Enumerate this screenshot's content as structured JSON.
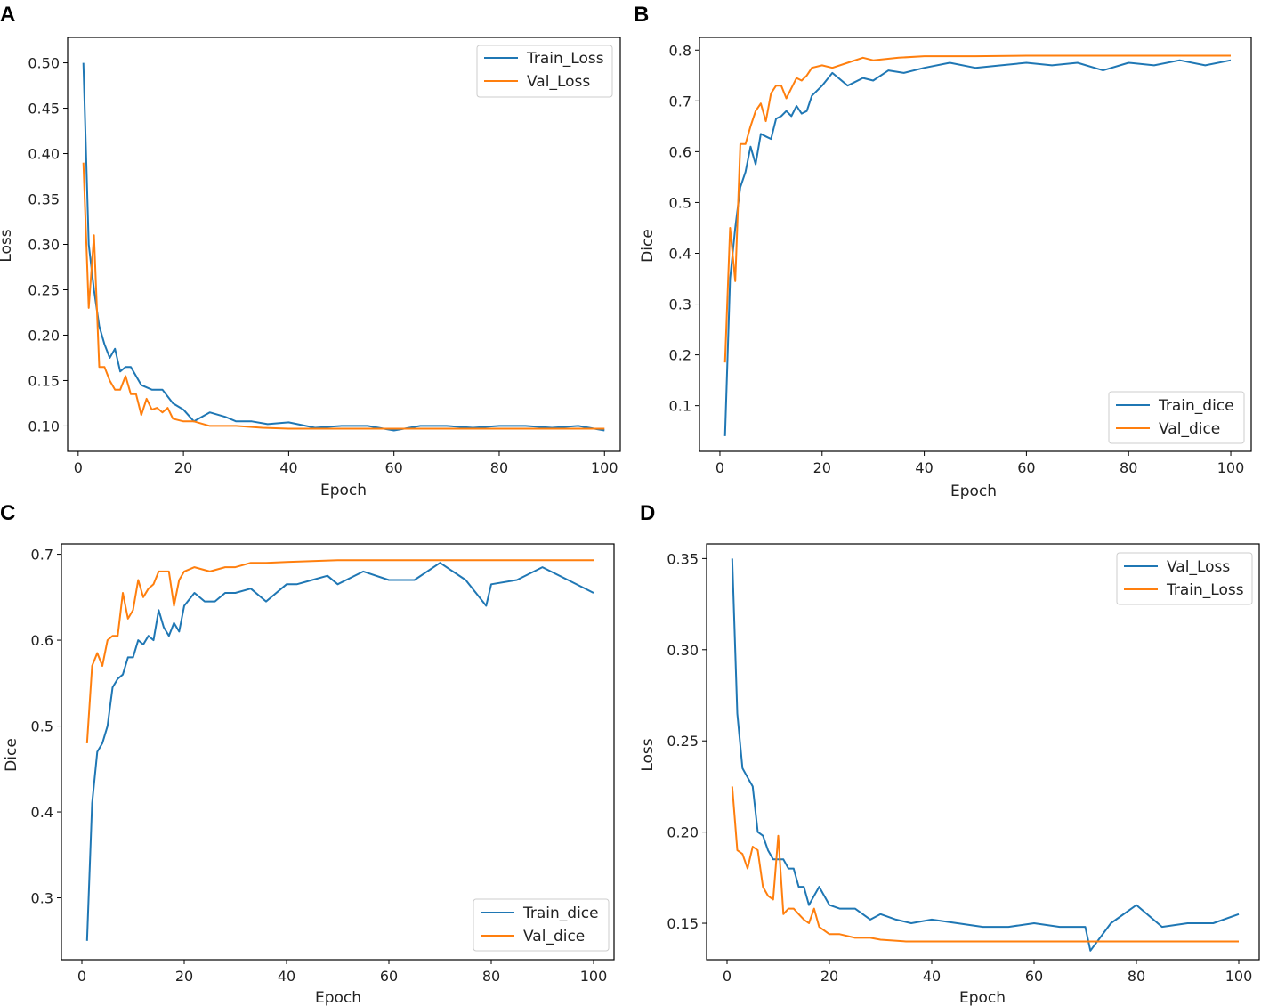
{
  "figure": {
    "colors": {
      "blue": "#1f77b4",
      "orange": "#ff7f0e"
    }
  },
  "chart_data": [
    {
      "panel": "A",
      "type": "line",
      "title": "",
      "xlabel": "Epoch",
      "ylabel": "Loss",
      "xlim": [
        -2,
        103
      ],
      "ylim": [
        0.072,
        0.528
      ],
      "xticks": [
        0,
        20,
        40,
        60,
        80,
        100
      ],
      "yticks": [
        0.1,
        0.15,
        0.2,
        0.25,
        0.3,
        0.35,
        0.4,
        0.45,
        0.5
      ],
      "ytick_labels": [
        "0.10",
        "0.15",
        "0.20",
        "0.25",
        "0.30",
        "0.35",
        "0.40",
        "0.45",
        "0.50"
      ],
      "legend_position": "top-right",
      "series": [
        {
          "name": "Train_Loss",
          "color": "#1f77b4",
          "x": [
            1,
            2,
            3,
            4,
            5,
            6,
            7,
            8,
            9,
            10,
            12,
            14,
            16,
            18,
            20,
            22,
            25,
            28,
            30,
            33,
            36,
            40,
            45,
            50,
            55,
            60,
            65,
            70,
            75,
            80,
            85,
            90,
            95,
            100
          ],
          "y": [
            0.5,
            0.3,
            0.25,
            0.21,
            0.19,
            0.175,
            0.185,
            0.16,
            0.165,
            0.165,
            0.145,
            0.14,
            0.14,
            0.125,
            0.118,
            0.105,
            0.115,
            0.11,
            0.105,
            0.105,
            0.102,
            0.104,
            0.098,
            0.1,
            0.1,
            0.095,
            0.1,
            0.1,
            0.098,
            0.1,
            0.1,
            0.098,
            0.1,
            0.095
          ]
        },
        {
          "name": "Val_Loss",
          "color": "#ff7f0e",
          "x": [
            1,
            2,
            3,
            4,
            5,
            6,
            7,
            8,
            9,
            10,
            11,
            12,
            13,
            14,
            15,
            16,
            17,
            18,
            20,
            22,
            25,
            28,
            30,
            35,
            40,
            50,
            60,
            70,
            80,
            90,
            100
          ],
          "y": [
            0.39,
            0.23,
            0.31,
            0.165,
            0.165,
            0.15,
            0.14,
            0.14,
            0.155,
            0.135,
            0.135,
            0.112,
            0.13,
            0.118,
            0.12,
            0.115,
            0.12,
            0.108,
            0.105,
            0.105,
            0.1,
            0.1,
            0.1,
            0.098,
            0.097,
            0.097,
            0.097,
            0.097,
            0.097,
            0.097,
            0.097
          ]
        }
      ]
    },
    {
      "panel": "B",
      "type": "line",
      "title": "",
      "xlabel": "Epoch",
      "ylabel": "Dice",
      "xlim": [
        -4,
        104
      ],
      "ylim": [
        0.01,
        0.825
      ],
      "xticks": [
        0,
        20,
        40,
        60,
        80,
        100
      ],
      "yticks": [
        0.1,
        0.2,
        0.3,
        0.4,
        0.5,
        0.6,
        0.7,
        0.8
      ],
      "ytick_labels": [
        "0.1",
        "0.2",
        "0.3",
        "0.4",
        "0.5",
        "0.6",
        "0.7",
        "0.8"
      ],
      "legend_position": "bottom-right",
      "series": [
        {
          "name": "Train_dice",
          "color": "#1f77b4",
          "x": [
            1,
            2,
            3,
            4,
            5,
            6,
            7,
            8,
            9,
            10,
            11,
            12,
            13,
            14,
            15,
            16,
            17,
            18,
            20,
            22,
            25,
            28,
            30,
            33,
            36,
            40,
            45,
            50,
            55,
            60,
            65,
            70,
            75,
            80,
            85,
            90,
            95,
            100
          ],
          "y": [
            0.04,
            0.35,
            0.45,
            0.53,
            0.56,
            0.61,
            0.575,
            0.635,
            0.63,
            0.625,
            0.665,
            0.67,
            0.68,
            0.67,
            0.69,
            0.675,
            0.68,
            0.71,
            0.73,
            0.755,
            0.73,
            0.745,
            0.74,
            0.76,
            0.755,
            0.765,
            0.775,
            0.765,
            0.77,
            0.775,
            0.77,
            0.775,
            0.76,
            0.775,
            0.77,
            0.78,
            0.77,
            0.78
          ]
        },
        {
          "name": "Val_dice",
          "color": "#ff7f0e",
          "x": [
            1,
            2,
            3,
            4,
            5,
            6,
            7,
            8,
            9,
            10,
            11,
            12,
            13,
            14,
            15,
            16,
            17,
            18,
            20,
            22,
            25,
            28,
            30,
            35,
            40,
            50,
            60,
            70,
            80,
            90,
            100
          ],
          "y": [
            0.185,
            0.45,
            0.345,
            0.615,
            0.615,
            0.65,
            0.68,
            0.695,
            0.66,
            0.715,
            0.73,
            0.73,
            0.705,
            0.725,
            0.745,
            0.74,
            0.75,
            0.765,
            0.77,
            0.765,
            0.775,
            0.785,
            0.78,
            0.785,
            0.788,
            0.788,
            0.789,
            0.789,
            0.789,
            0.789,
            0.789
          ]
        }
      ]
    },
    {
      "panel": "C",
      "type": "line",
      "title": "",
      "xlabel": "Epoch",
      "ylabel": "Dice",
      "xlim": [
        -4,
        104
      ],
      "ylim": [
        0.228,
        0.712
      ],
      "xticks": [
        0,
        20,
        40,
        60,
        80,
        100
      ],
      "yticks": [
        0.3,
        0.4,
        0.5,
        0.6,
        0.7
      ],
      "ytick_labels": [
        "0.3",
        "0.4",
        "0.5",
        "0.6",
        "0.7"
      ],
      "legend_position": "bottom-right",
      "series": [
        {
          "name": "Train_dice",
          "color": "#1f77b4",
          "x": [
            1,
            2,
            3,
            4,
            5,
            6,
            7,
            8,
            9,
            10,
            11,
            12,
            13,
            14,
            15,
            16,
            17,
            18,
            19,
            20,
            22,
            24,
            26,
            28,
            30,
            33,
            36,
            40,
            42,
            45,
            48,
            50,
            55,
            60,
            65,
            70,
            75,
            79,
            80,
            85,
            90,
            95,
            100
          ],
          "y": [
            0.25,
            0.41,
            0.47,
            0.48,
            0.5,
            0.545,
            0.555,
            0.56,
            0.58,
            0.58,
            0.6,
            0.595,
            0.605,
            0.6,
            0.635,
            0.615,
            0.605,
            0.62,
            0.61,
            0.64,
            0.655,
            0.645,
            0.645,
            0.655,
            0.655,
            0.66,
            0.645,
            0.665,
            0.665,
            0.67,
            0.675,
            0.665,
            0.68,
            0.67,
            0.67,
            0.69,
            0.67,
            0.64,
            0.665,
            0.67,
            0.685,
            0.67,
            0.655
          ]
        },
        {
          "name": "Val_dice",
          "color": "#ff7f0e",
          "x": [
            1,
            2,
            3,
            4,
            5,
            6,
            7,
            8,
            9,
            10,
            11,
            12,
            13,
            14,
            15,
            16,
            17,
            18,
            19,
            20,
            22,
            25,
            28,
            30,
            33,
            36,
            40,
            45,
            50,
            60,
            70,
            80,
            90,
            100
          ],
          "y": [
            0.48,
            0.57,
            0.585,
            0.57,
            0.6,
            0.605,
            0.605,
            0.655,
            0.625,
            0.635,
            0.67,
            0.65,
            0.66,
            0.665,
            0.68,
            0.68,
            0.68,
            0.64,
            0.67,
            0.68,
            0.685,
            0.68,
            0.685,
            0.685,
            0.69,
            0.69,
            0.691,
            0.692,
            0.693,
            0.693,
            0.693,
            0.693,
            0.693,
            0.693
          ]
        }
      ]
    },
    {
      "panel": "D",
      "type": "line",
      "title": "",
      "xlabel": "Epoch",
      "ylabel": "Loss",
      "xlim": [
        -4,
        104
      ],
      "ylim": [
        0.13,
        0.358
      ],
      "xticks": [
        0,
        20,
        40,
        60,
        80,
        100
      ],
      "yticks": [
        0.15,
        0.2,
        0.25,
        0.3,
        0.35
      ],
      "ytick_labels": [
        "0.15",
        "0.20",
        "0.25",
        "0.30",
        "0.35"
      ],
      "legend_position": "top-right",
      "series": [
        {
          "name": "Val_Loss",
          "color": "#1f77b4",
          "x": [
            1,
            2,
            3,
            4,
            5,
            6,
            7,
            8,
            9,
            10,
            11,
            12,
            13,
            14,
            15,
            16,
            17,
            18,
            20,
            22,
            25,
            28,
            30,
            33,
            36,
            40,
            45,
            50,
            55,
            60,
            65,
            70,
            71,
            75,
            80,
            85,
            90,
            95,
            100
          ],
          "y": [
            0.35,
            0.265,
            0.235,
            0.23,
            0.225,
            0.2,
            0.198,
            0.19,
            0.185,
            0.185,
            0.185,
            0.18,
            0.18,
            0.17,
            0.17,
            0.16,
            0.165,
            0.17,
            0.16,
            0.158,
            0.158,
            0.152,
            0.155,
            0.152,
            0.15,
            0.152,
            0.15,
            0.148,
            0.148,
            0.15,
            0.148,
            0.148,
            0.135,
            0.15,
            0.16,
            0.148,
            0.15,
            0.15,
            0.155
          ]
        },
        {
          "name": "Train_Loss",
          "color": "#ff7f0e",
          "x": [
            1,
            2,
            3,
            4,
            5,
            6,
            7,
            8,
            9,
            10,
            11,
            12,
            13,
            14,
            15,
            16,
            17,
            18,
            20,
            22,
            25,
            28,
            30,
            35,
            40,
            45,
            50,
            55,
            60,
            70,
            80,
            90,
            100
          ],
          "y": [
            0.225,
            0.19,
            0.188,
            0.18,
            0.192,
            0.19,
            0.17,
            0.165,
            0.163,
            0.198,
            0.155,
            0.158,
            0.158,
            0.155,
            0.152,
            0.15,
            0.158,
            0.148,
            0.144,
            0.144,
            0.142,
            0.142,
            0.141,
            0.14,
            0.14,
            0.14,
            0.14,
            0.14,
            0.14,
            0.14,
            0.14,
            0.14,
            0.14
          ]
        }
      ]
    }
  ]
}
